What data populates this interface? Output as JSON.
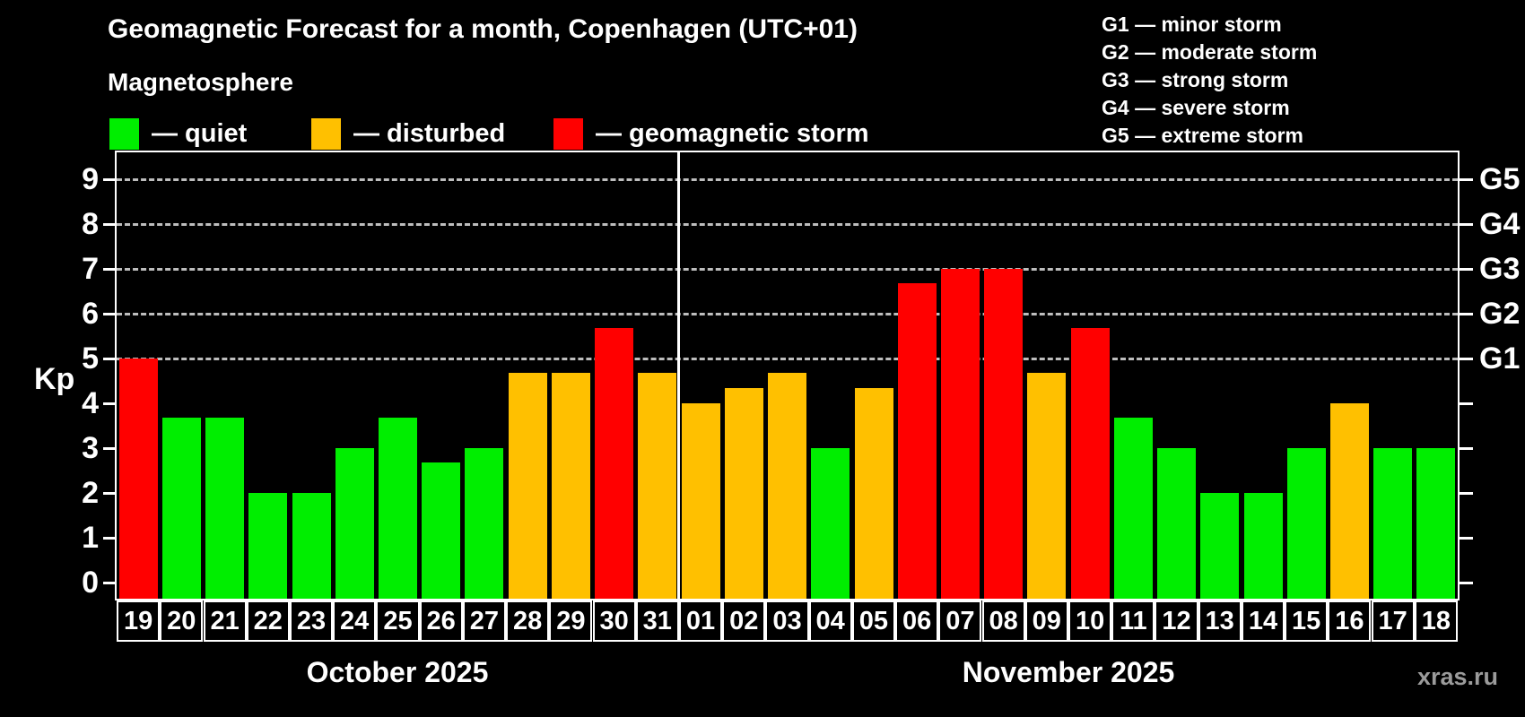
{
  "header": {
    "title": "Geomagnetic Forecast for a month, Copenhagen (UTC+01)",
    "subtitle": "Magnetosphere"
  },
  "watermark": "xras.ru",
  "chart_data": {
    "type": "bar",
    "title": "Geomagnetic Forecast for a month, Copenhagen (UTC+01)",
    "subtitle": "Magnetosphere",
    "ylabel": "Kp",
    "ylim": [
      0,
      9
    ],
    "yticks": [
      0,
      1,
      2,
      3,
      4,
      5,
      6,
      7,
      8,
      9
    ],
    "grid_kp_levels": [
      5,
      6,
      7,
      8,
      9
    ],
    "right_axis_labels": [
      {
        "kp": 5,
        "text": "G1"
      },
      {
        "kp": 6,
        "text": "G2"
      },
      {
        "kp": 7,
        "text": "G3"
      },
      {
        "kp": 8,
        "text": "G4"
      },
      {
        "kp": 9,
        "text": "G5"
      }
    ],
    "legend": [
      {
        "label": "— quiet",
        "level": "quiet",
        "color": "#00ee00"
      },
      {
        "label": "— disturbed",
        "level": "disturbed",
        "color": "#ffc000"
      },
      {
        "label": "— geomagnetic storm",
        "level": "storm",
        "color": "#ff0000"
      }
    ],
    "g_scale_legend": [
      "G1 — minor storm",
      "G2 — moderate storm",
      "G3 — strong storm",
      "G4 — severe storm",
      "G5 — extreme storm"
    ],
    "colors": {
      "quiet": "#00ee00",
      "disturbed": "#ffc000",
      "storm": "#ff0000"
    },
    "months": [
      {
        "name": "October 2025",
        "days": [
          {
            "day": "19",
            "kp": 5.0,
            "level": "storm"
          },
          {
            "day": "20",
            "kp": 3.67,
            "level": "quiet"
          },
          {
            "day": "21",
            "kp": 3.67,
            "level": "quiet"
          },
          {
            "day": "22",
            "kp": 2.0,
            "level": "quiet"
          },
          {
            "day": "23",
            "kp": 2.0,
            "level": "quiet"
          },
          {
            "day": "24",
            "kp": 3.0,
            "level": "quiet"
          },
          {
            "day": "25",
            "kp": 3.67,
            "level": "quiet"
          },
          {
            "day": "26",
            "kp": 2.67,
            "level": "quiet"
          },
          {
            "day": "27",
            "kp": 3.0,
            "level": "quiet"
          },
          {
            "day": "28",
            "kp": 4.67,
            "level": "disturbed"
          },
          {
            "day": "29",
            "kp": 4.67,
            "level": "disturbed"
          },
          {
            "day": "30",
            "kp": 5.67,
            "level": "storm"
          },
          {
            "day": "31",
            "kp": 4.67,
            "level": "disturbed"
          }
        ]
      },
      {
        "name": "November 2025",
        "days": [
          {
            "day": "01",
            "kp": 4.0,
            "level": "disturbed"
          },
          {
            "day": "02",
            "kp": 4.33,
            "level": "disturbed"
          },
          {
            "day": "03",
            "kp": 4.67,
            "level": "disturbed"
          },
          {
            "day": "04",
            "kp": 3.0,
            "level": "quiet"
          },
          {
            "day": "05",
            "kp": 4.33,
            "level": "disturbed"
          },
          {
            "day": "06",
            "kp": 6.67,
            "level": "storm"
          },
          {
            "day": "07",
            "kp": 7.0,
            "level": "storm"
          },
          {
            "day": "08",
            "kp": 7.0,
            "level": "storm"
          },
          {
            "day": "09",
            "kp": 4.67,
            "level": "disturbed"
          },
          {
            "day": "10",
            "kp": 5.67,
            "level": "storm"
          },
          {
            "day": "11",
            "kp": 3.67,
            "level": "quiet"
          },
          {
            "day": "12",
            "kp": 3.0,
            "level": "quiet"
          },
          {
            "day": "13",
            "kp": 2.0,
            "level": "quiet"
          },
          {
            "day": "14",
            "kp": 2.0,
            "level": "quiet"
          },
          {
            "day": "15",
            "kp": 3.0,
            "level": "quiet"
          },
          {
            "day": "16",
            "kp": 4.0,
            "level": "disturbed"
          },
          {
            "day": "17",
            "kp": 3.0,
            "level": "quiet"
          },
          {
            "day": "18",
            "kp": 3.0,
            "level": "quiet"
          }
        ]
      }
    ]
  }
}
